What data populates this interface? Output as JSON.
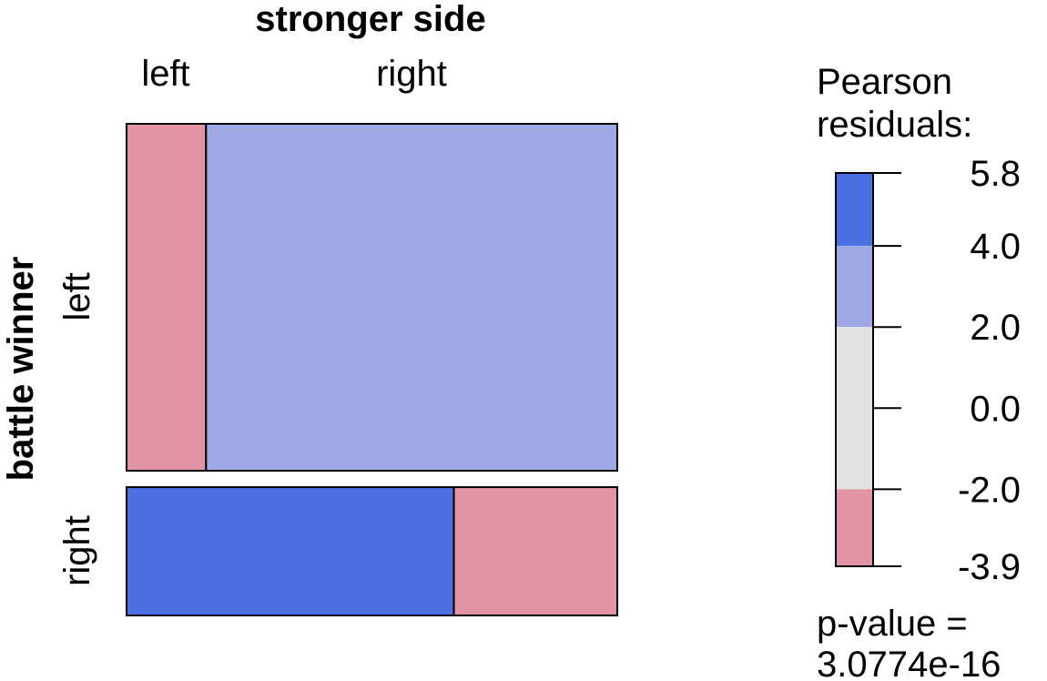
{
  "chart_data": {
    "type": "mosaic",
    "top_variable": {
      "label": "stronger side",
      "levels": [
        "left",
        "right"
      ]
    },
    "left_variable": {
      "label": "battle winner",
      "levels": [
        "left",
        "right"
      ]
    },
    "column_proportions": [
      0.162,
      0.838
    ],
    "row_proportions_within_column": [
      [
        0.73,
        0.27
      ],
      [
        0.667,
        0.333
      ]
    ],
    "cells": [
      {
        "stronger_side": "left",
        "battle_winner": "left",
        "residual_band": "-3.9 to -2.0",
        "color": "#e294a5"
      },
      {
        "stronger_side": "right",
        "battle_winner": "left",
        "residual_band": "2.0 to 4.0",
        "color": "#9ea8e4"
      },
      {
        "stronger_side": "left",
        "battle_winner": "right",
        "residual_band": "4.0 to 5.8",
        "color": "#4a70e2"
      },
      {
        "stronger_side": "right",
        "battle_winner": "right",
        "residual_band": "-3.9 to -2.0",
        "color": "#e294a5"
      }
    ],
    "legend": {
      "title_lines": [
        "Pearson",
        "residuals:"
      ],
      "ticks": [
        "5.8",
        "4.0",
        "2.0",
        "0.0",
        "-2.0",
        "-3.9"
      ],
      "tick_values": [
        5.8,
        4.0,
        2.0,
        0.0,
        -2.0,
        -3.9
      ],
      "range": [
        -3.9,
        5.8
      ],
      "bands": [
        {
          "from": 4.0,
          "to": 5.8,
          "color": "#4a70e2"
        },
        {
          "from": 2.0,
          "to": 4.0,
          "color": "#9ea8e4"
        },
        {
          "from": -2.0,
          "to": 2.0,
          "color": "#e2e2e2"
        },
        {
          "from": -3.9,
          "to": -2.0,
          "color": "#e294a5"
        }
      ],
      "pvalue_lines": [
        "p-value =",
        "3.0774e-16"
      ]
    }
  }
}
